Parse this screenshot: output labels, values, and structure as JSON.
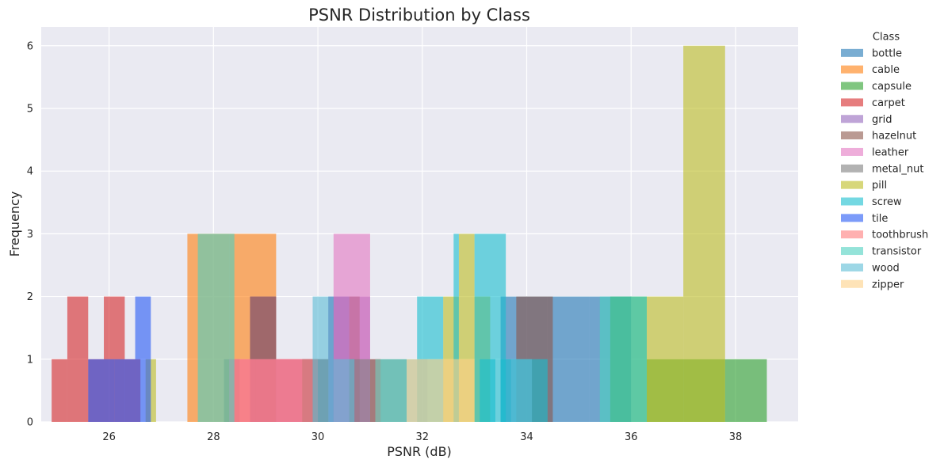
{
  "chart_data": {
    "type": "histogram",
    "title": "PSNR Distribution by Class",
    "xlabel": "PSNR (dB)",
    "ylabel": "Frequency",
    "xlim": [
      24.7,
      39.2
    ],
    "ylim": [
      0,
      6.3
    ],
    "xticks": [
      26,
      28,
      30,
      32,
      34,
      36,
      38
    ],
    "yticks": [
      0,
      1,
      2,
      3,
      4,
      5,
      6
    ],
    "grid": true,
    "legend_title": "Class",
    "legend_position": "outside-right",
    "series": [
      {
        "name": "bottle",
        "color": "#1f77b4",
        "bars": [
          [
            28.2,
            28.5,
            1
          ],
          [
            30.2,
            30.6,
            2
          ],
          [
            33.5,
            34.4,
            2
          ],
          [
            34.4,
            35.2,
            2
          ],
          [
            35.2,
            36.0,
            2
          ]
        ]
      },
      {
        "name": "cable",
        "color": "#ff7f0e",
        "bars": [
          [
            27.5,
            28.3,
            3
          ],
          [
            28.3,
            29.2,
            3
          ],
          [
            29.2,
            30.0,
            1
          ]
        ]
      },
      {
        "name": "capsule",
        "color": "#2ca02c",
        "bars": [
          [
            35.6,
            36.3,
            2
          ],
          [
            36.3,
            37.0,
            1
          ],
          [
            37.0,
            37.8,
            1
          ],
          [
            37.8,
            38.6,
            1
          ]
        ]
      },
      {
        "name": "carpet",
        "color": "#d62728",
        "bars": [
          [
            24.9,
            25.2,
            1
          ],
          [
            25.2,
            25.6,
            2
          ],
          [
            25.6,
            25.9,
            1
          ],
          [
            25.9,
            26.3,
            2
          ],
          [
            26.3,
            26.6,
            1
          ],
          [
            31.0,
            31.2,
            1
          ]
        ]
      },
      {
        "name": "grid",
        "color": "#9467bd",
        "bars": [
          [
            28.7,
            29.2,
            2
          ],
          [
            29.2,
            29.7,
            1
          ],
          [
            29.7,
            30.2,
            1
          ],
          [
            30.2,
            30.6,
            2
          ],
          [
            30.6,
            31.0,
            2
          ]
        ]
      },
      {
        "name": "hazelnut",
        "color": "#8c564b",
        "bars": [
          [
            28.7,
            29.2,
            2
          ],
          [
            29.7,
            30.2,
            1
          ],
          [
            30.6,
            30.8,
            2
          ],
          [
            33.8,
            34.5,
            2
          ]
        ]
      },
      {
        "name": "leather",
        "color": "#e377c2",
        "bars": [
          [
            28.3,
            28.8,
            1
          ],
          [
            28.8,
            29.3,
            1
          ],
          [
            29.3,
            29.9,
            1
          ],
          [
            30.3,
            31.0,
            3
          ]
        ]
      },
      {
        "name": "metal_nut",
        "color": "#7f7f7f",
        "bars": [
          [
            29.7,
            30.2,
            1
          ],
          [
            30.6,
            31.1,
            1
          ],
          [
            31.1,
            31.7,
            1
          ]
        ]
      },
      {
        "name": "pill",
        "color": "#bcbd22",
        "bars": [
          [
            26.7,
            26.9,
            1
          ],
          [
            32.4,
            32.7,
            2
          ],
          [
            32.7,
            33.0,
            3
          ],
          [
            33.0,
            33.3,
            2
          ],
          [
            36.3,
            37.0,
            2
          ],
          [
            37.0,
            37.8,
            6
          ]
        ]
      },
      {
        "name": "screw",
        "color": "#17becf",
        "bars": [
          [
            31.9,
            32.4,
            2
          ],
          [
            32.6,
            32.7,
            3
          ],
          [
            33.0,
            33.6,
            3
          ],
          [
            33.1,
            33.4,
            1
          ],
          [
            33.5,
            34.4,
            1
          ]
        ]
      },
      {
        "name": "tile",
        "color": "#2559f5",
        "bars": [
          [
            25.6,
            25.9,
            1
          ],
          [
            25.9,
            26.1,
            1
          ],
          [
            26.1,
            26.5,
            1
          ],
          [
            26.5,
            26.8,
            2
          ]
        ]
      },
      {
        "name": "toothbrush",
        "color": "#ff7b7b",
        "bars": [
          [
            28.3,
            29.2,
            1
          ],
          [
            29.2,
            30.0,
            1
          ],
          [
            31.1,
            31.2,
            1
          ]
        ]
      },
      {
        "name": "transistor",
        "color": "#4dd0c0",
        "bars": [
          [
            27.7,
            28.4,
            3
          ],
          [
            31.1,
            31.7,
            1
          ],
          [
            35.4,
            36.3,
            2
          ]
        ]
      },
      {
        "name": "wood",
        "color": "#5bbcd6",
        "bars": [
          [
            29.9,
            30.3,
            2
          ],
          [
            30.3,
            30.7,
            1
          ],
          [
            31.7,
            32.1,
            1
          ],
          [
            33.7,
            34.1,
            1
          ]
        ]
      },
      {
        "name": "zipper",
        "color": "#fdd087",
        "bars": [
          [
            31.7,
            32.4,
            1
          ],
          [
            32.4,
            33.0,
            1
          ]
        ]
      }
    ]
  }
}
